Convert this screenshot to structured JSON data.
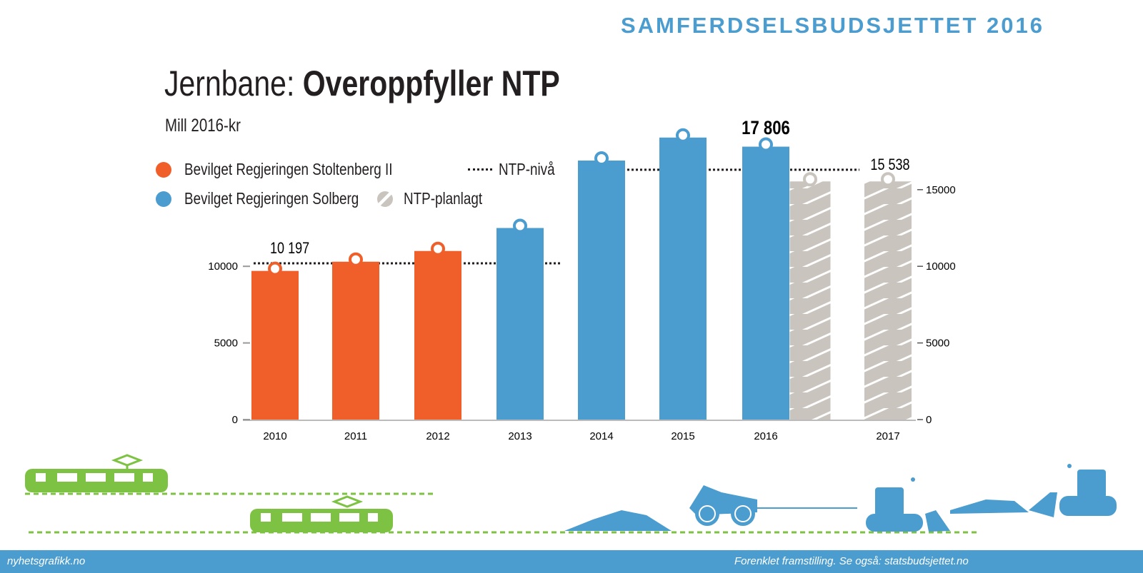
{
  "header": {
    "brand": "SAMFERDSELSBUDSJETTET 2016",
    "title_normal": "Jernbane: ",
    "title_bold": "Overoppfyller NTP",
    "subtitle": "Mill 2016-kr"
  },
  "legend": {
    "stoltenberg": "Bevilget Regjeringen Stoltenberg II",
    "solberg": "Bevilget Regjeringen Solberg",
    "ntp_planned": "NTP-planlagt",
    "ntp_level": "NTP-nivå"
  },
  "colors": {
    "stoltenberg": "#f05f2a",
    "solberg": "#4b9ccf",
    "ntp_planned": "#c9c4bd",
    "accent": "#4b9ccf",
    "rail": "#7dc242"
  },
  "chart_data": {
    "type": "bar",
    "categories": [
      "2010",
      "2011",
      "2012",
      "2013",
      "2014",
      "2015",
      "2016",
      "2017"
    ],
    "series": [
      {
        "name": "Bevilget Regjeringen Stoltenberg II",
        "values": [
          9700,
          10300,
          11000,
          null,
          null,
          null,
          null,
          null
        ]
      },
      {
        "name": "Bevilget Regjeringen Solberg",
        "values": [
          null,
          null,
          null,
          12500,
          16900,
          18400,
          17806,
          null
        ]
      },
      {
        "name": "NTP-planlagt",
        "values": [
          null,
          null,
          null,
          null,
          null,
          null,
          15538,
          15538
        ]
      }
    ],
    "ntp_level": [
      {
        "from": "2010",
        "to": "2013",
        "value": 10197
      },
      {
        "from": "2014",
        "to": "2017",
        "value": 16300
      }
    ],
    "data_labels": {
      "ntp_2010": "10 197",
      "y2016": "17 806",
      "y2017": "15 538"
    },
    "y_ticks_left": [
      "0",
      "5000",
      "10000"
    ],
    "y_ticks_right": [
      "0",
      "5000",
      "10000",
      "15000"
    ],
    "ylim": [
      0,
      19000
    ],
    "grid": false
  },
  "footer": {
    "left": "nyhetsgrafikk.no",
    "right": "Forenklet framstilling. Se også: statsbudsjettet.no"
  }
}
